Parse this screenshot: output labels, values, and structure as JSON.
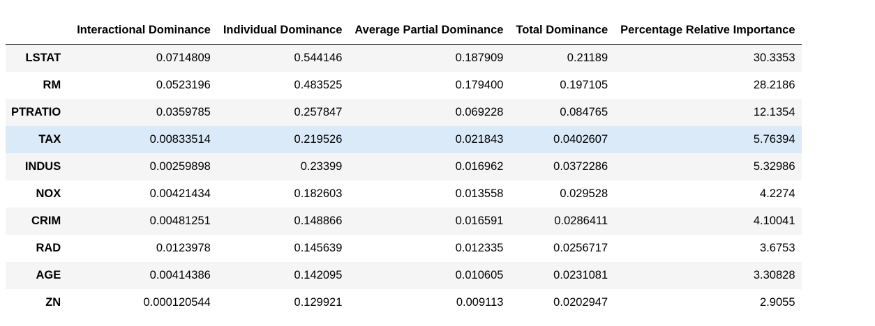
{
  "table": {
    "columns": [
      "Interactional Dominance",
      "Individual Dominance",
      "Average Partial Dominance",
      "Total Dominance",
      "Percentage Relative Importance"
    ],
    "rows": [
      {
        "index": "LSTAT",
        "values": [
          "0.0714809",
          "0.544146",
          "0.187909",
          "0.21189",
          "30.3353"
        ]
      },
      {
        "index": "RM",
        "values": [
          "0.0523196",
          "0.483525",
          "0.179400",
          "0.197105",
          "28.2186"
        ]
      },
      {
        "index": "PTRATIO",
        "values": [
          "0.0359785",
          "0.257847",
          "0.069228",
          "0.084765",
          "12.1354"
        ]
      },
      {
        "index": "TAX",
        "values": [
          "0.00833514",
          "0.219526",
          "0.021843",
          "0.0402607",
          "5.76394"
        ]
      },
      {
        "index": "INDUS",
        "values": [
          "0.00259898",
          "0.23399",
          "0.016962",
          "0.0372286",
          "5.32986"
        ]
      },
      {
        "index": "NOX",
        "values": [
          "0.00421434",
          "0.182603",
          "0.013558",
          "0.029528",
          "4.2274"
        ]
      },
      {
        "index": "CRIM",
        "values": [
          "0.00481251",
          "0.148866",
          "0.016591",
          "0.0286411",
          "4.10041"
        ]
      },
      {
        "index": "RAD",
        "values": [
          "0.0123978",
          "0.145639",
          "0.012335",
          "0.0256717",
          "3.6753"
        ]
      },
      {
        "index": "AGE",
        "values": [
          "0.00414386",
          "0.142095",
          "0.010605",
          "0.0231081",
          "3.30828"
        ]
      },
      {
        "index": "ZN",
        "values": [
          "0.000120544",
          "0.129921",
          "0.009113",
          "0.0202947",
          "2.9055"
        ]
      }
    ],
    "highlight_color": "#dbeaf8",
    "stripe_color": "#f5f5f5"
  }
}
